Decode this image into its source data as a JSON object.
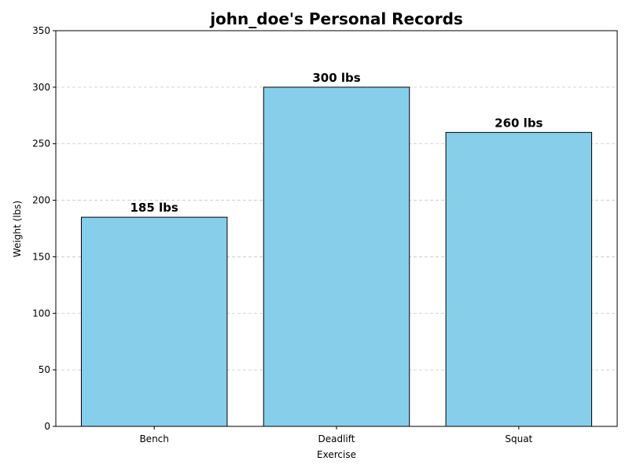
{
  "chart_data": {
    "type": "bar",
    "title": "john_doe's Personal Records",
    "xlabel": "Exercise",
    "ylabel": "Weight (lbs)",
    "categories": [
      "Bench",
      "Deadlift",
      "Squat"
    ],
    "values": [
      185,
      300,
      260
    ],
    "data_labels": [
      "185 lbs",
      "300 lbs",
      "260 lbs"
    ],
    "ylim": [
      0,
      350
    ],
    "yticks": [
      0,
      50,
      100,
      150,
      200,
      250,
      300,
      350
    ],
    "grid": "y-axis dashed",
    "bar_color": "#87CEEB",
    "bar_edge_color": "#000000"
  }
}
